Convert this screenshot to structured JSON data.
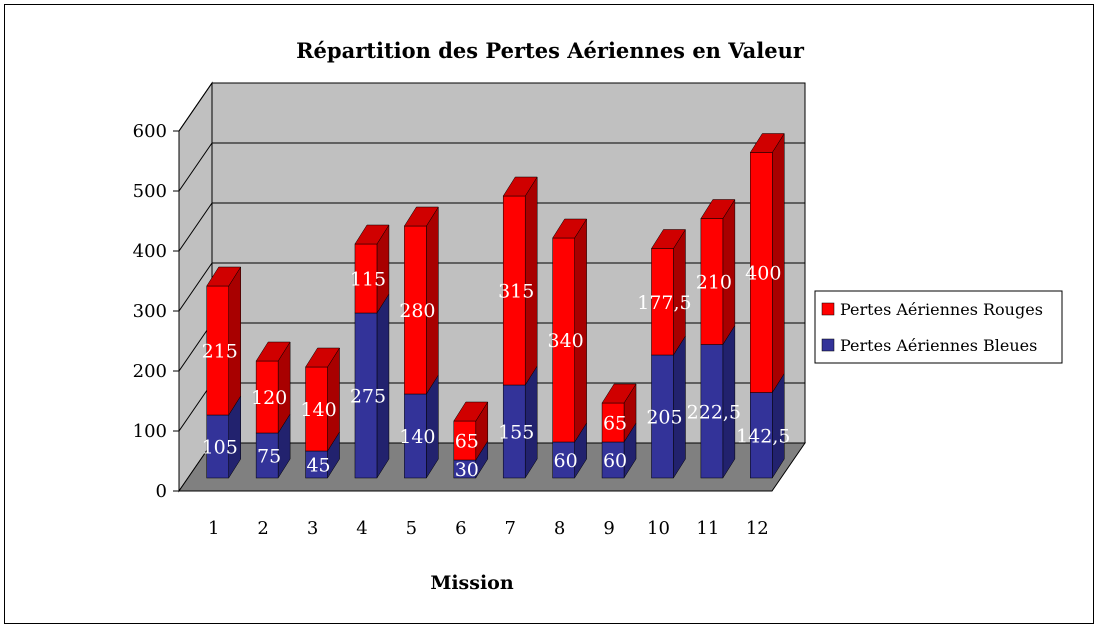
{
  "chart_data": {
    "type": "bar",
    "stacked": true,
    "three_d": true,
    "title": "Répartition des Pertes Aériennes en Valeur",
    "xlabel": "Mission",
    "ylabel": "",
    "ylim": [
      0,
      600
    ],
    "yticks": [
      0,
      100,
      200,
      300,
      400,
      500,
      600
    ],
    "grid": true,
    "legend_position": "right",
    "categories": [
      "1",
      "2",
      "3",
      "4",
      "5",
      "6",
      "7",
      "8",
      "9",
      "10",
      "11",
      "12"
    ],
    "series": [
      {
        "name": "Pertes Aériennes Bleues",
        "color": "#333399",
        "values": [
          105,
          75,
          45,
          275,
          140,
          30,
          155,
          60,
          60,
          205,
          222.5,
          142.5
        ],
        "labels": [
          "105",
          "75",
          "45",
          "275",
          "140",
          "30",
          "155",
          "60",
          "60",
          "205",
          "222,5",
          "142,5"
        ]
      },
      {
        "name": "Pertes Aériennes Rouges",
        "color": "#ff0000",
        "values": [
          215,
          120,
          140,
          115,
          280,
          65,
          315,
          340,
          65,
          177.5,
          210,
          400
        ],
        "labels": [
          "215",
          "120",
          "140",
          "115",
          "280",
          "65",
          "315",
          "340",
          "65",
          "177,5",
          "210",
          "400"
        ]
      }
    ],
    "legend_order": [
      1,
      0
    ]
  }
}
